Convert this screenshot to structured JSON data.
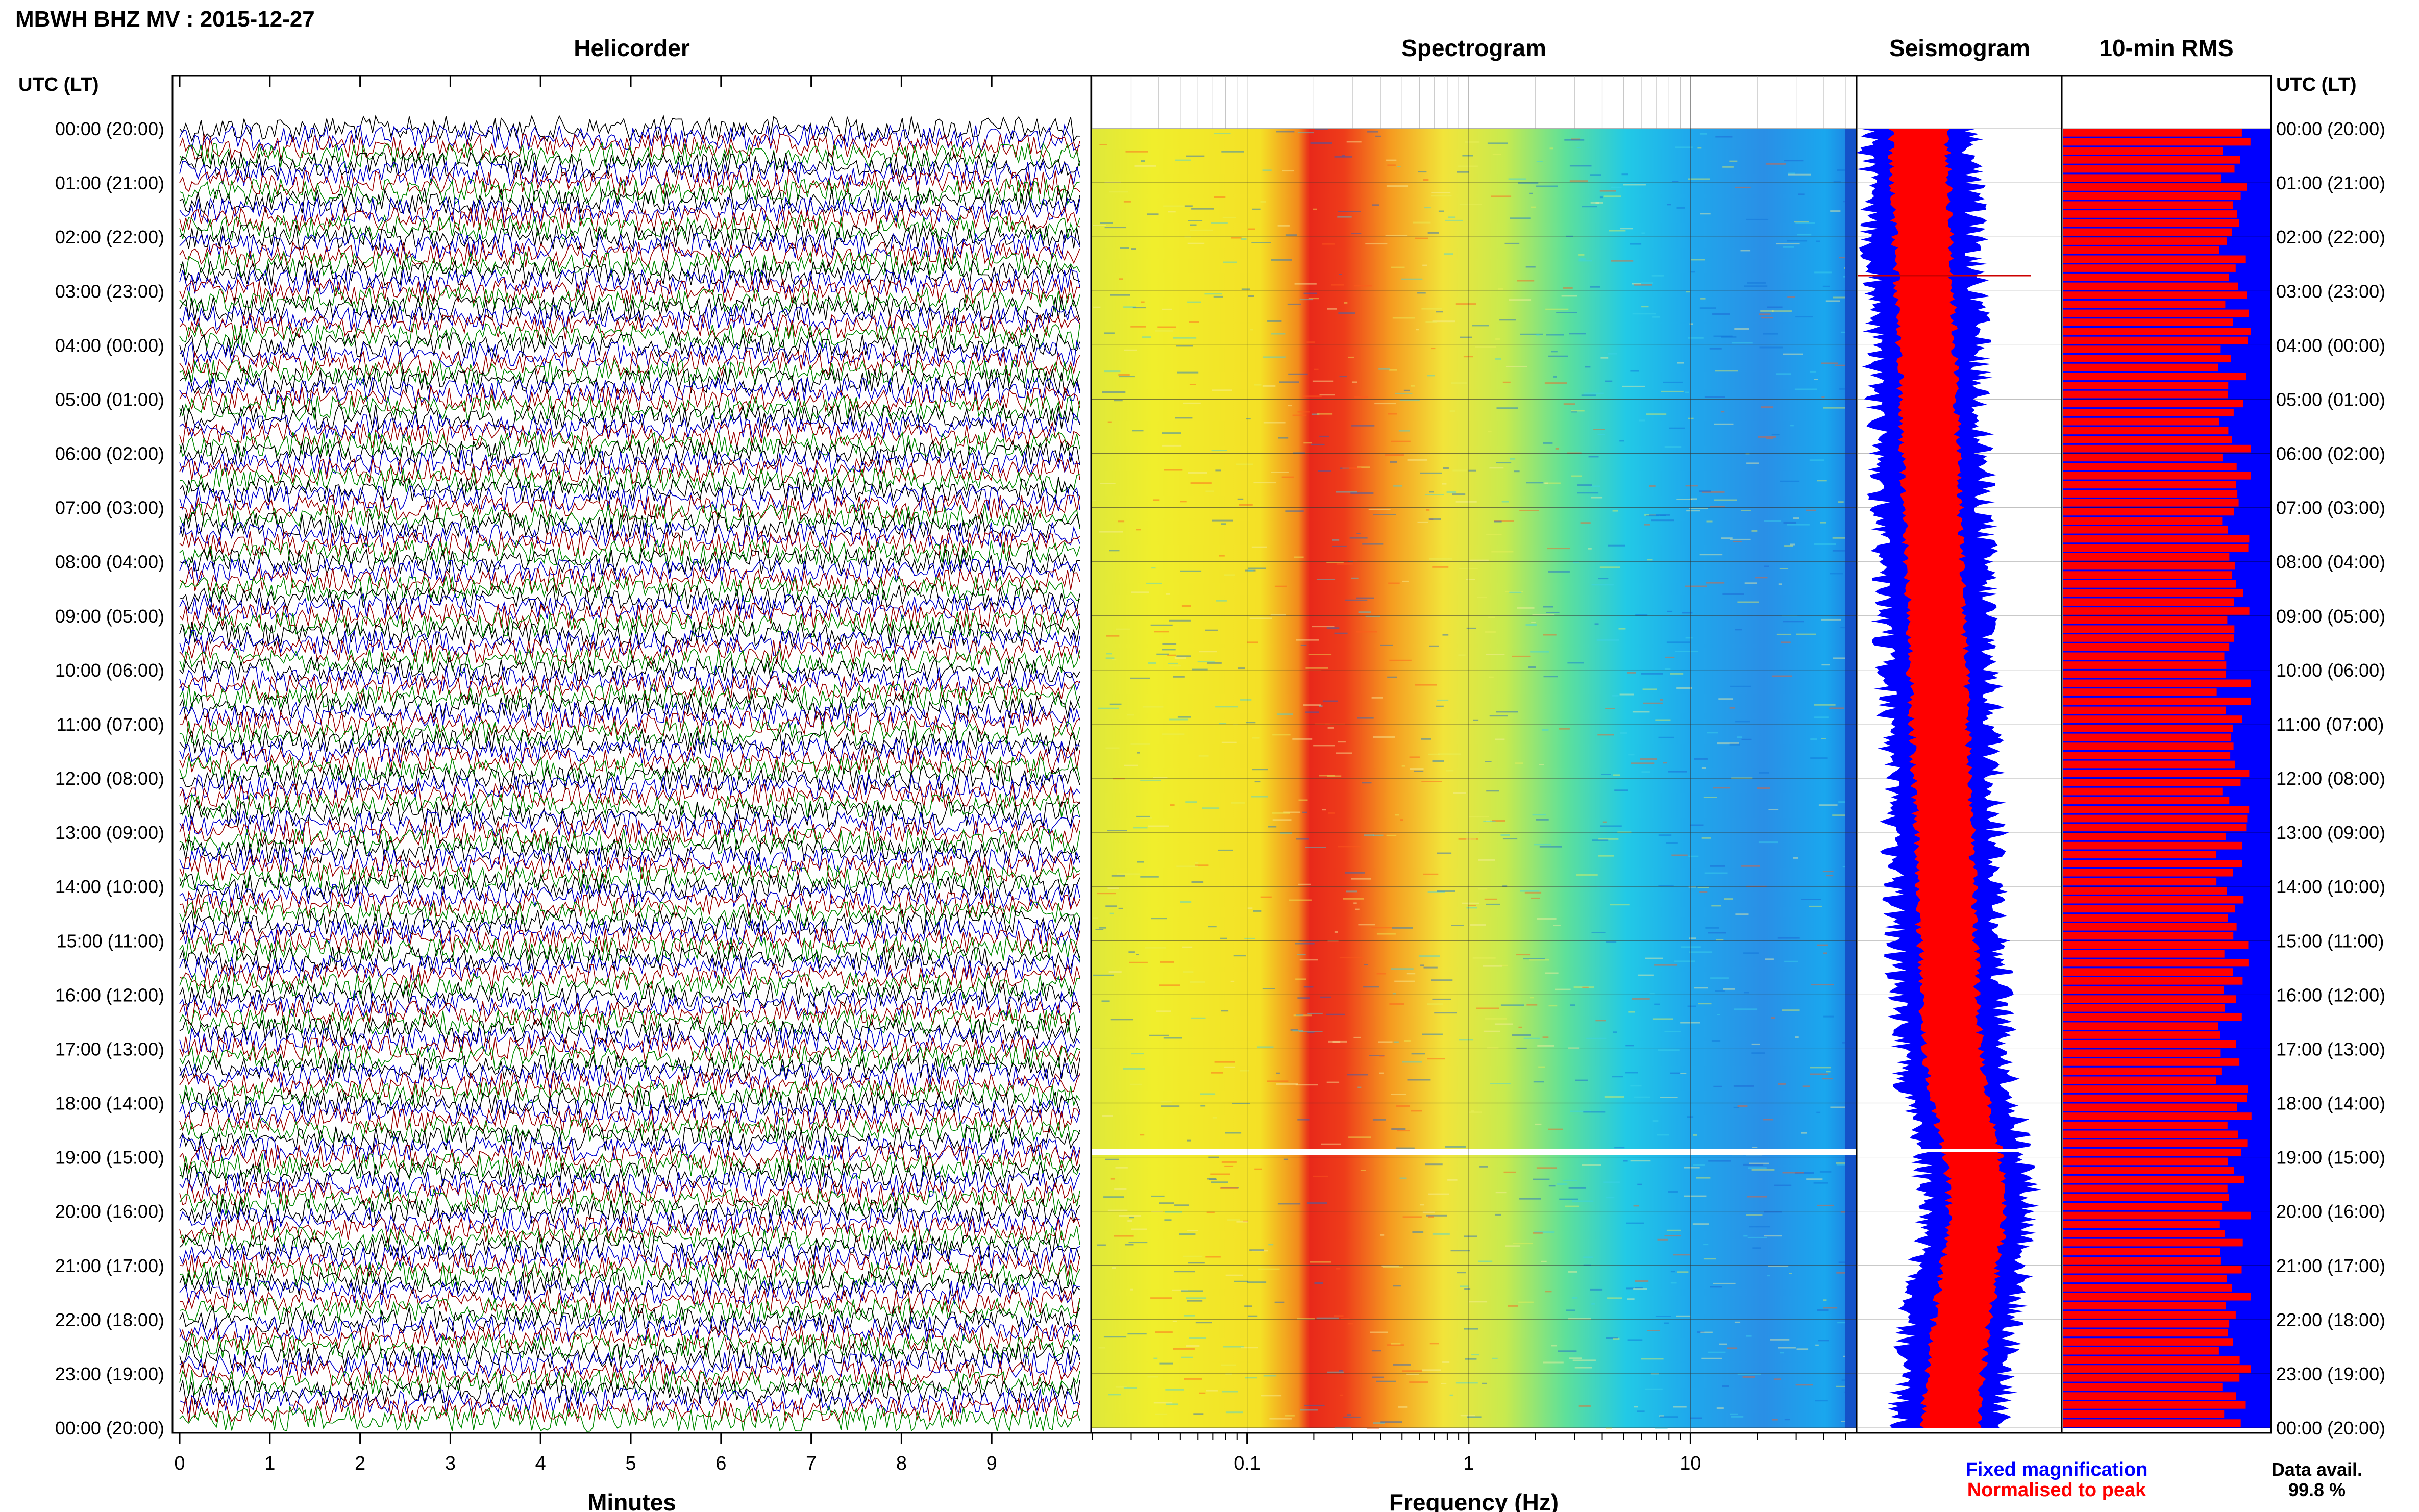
{
  "header": {
    "station_title": "MBWH BHZ MV : 2015-12-27",
    "time_axis_label_left": "UTC (LT)",
    "time_axis_label_right": "UTC (LT)"
  },
  "panels": {
    "helicorder": "Helicorder",
    "spectrogram": "Spectrogram",
    "seismogram": "Seismogram",
    "rms": "10-min RMS"
  },
  "time_labels": [
    "00:00 (20:00)",
    "01:00 (21:00)",
    "02:00 (22:00)",
    "03:00 (23:00)",
    "04:00 (00:00)",
    "05:00 (01:00)",
    "06:00 (02:00)",
    "07:00 (03:00)",
    "08:00 (04:00)",
    "09:00 (05:00)",
    "10:00 (06:00)",
    "11:00 (07:00)",
    "12:00 (08:00)",
    "13:00 (09:00)",
    "14:00 (10:00)",
    "15:00 (11:00)",
    "16:00 (12:00)",
    "17:00 (13:00)",
    "18:00 (14:00)",
    "19:00 (15:00)",
    "20:00 (16:00)",
    "21:00 (17:00)",
    "22:00 (18:00)",
    "23:00 (19:00)",
    "00:00 (20:00)"
  ],
  "legend": {
    "fixed": "Fixed magnification",
    "normalised": "Normalised to peak",
    "fixed_color": "#0000ff",
    "normalised_color": "#ff0000"
  },
  "data_availability": {
    "label": "Data avail.",
    "value": "99.8 %"
  },
  "chart_data": [
    {
      "type": "line",
      "title": "Helicorder",
      "xlabel": "Minutes",
      "x_ticks": [
        "0",
        "1",
        "2",
        "3",
        "4",
        "5",
        "6",
        "7",
        "8",
        "9"
      ],
      "xlim": [
        0,
        10
      ],
      "rows": 144,
      "row_minutes": 10,
      "trace_colors": [
        "#000000",
        "#0000cc",
        "#990000",
        "#008800"
      ]
    },
    {
      "type": "heatmap",
      "title": "Spectrogram",
      "xlabel": "Frequency (Hz)",
      "x_scale": "log",
      "x_ticks": [
        "0.1",
        "1",
        "10"
      ],
      "xlim": [
        0.02,
        50
      ],
      "ylim_hours": [
        0,
        24
      ],
      "peak_band_hz": [
        0.2,
        0.4
      ],
      "gap_time_utc": "19:00"
    },
    {
      "type": "area",
      "title": "Seismogram",
      "series": [
        {
          "name": "Fixed magnification",
          "color": "#0000ff"
        },
        {
          "name": "Normalised to peak",
          "color": "#ff0000"
        }
      ]
    },
    {
      "type": "bar",
      "title": "10-min RMS",
      "bins": 144,
      "colors": {
        "fixed": "#0000ff",
        "normalised": "#ff0000"
      }
    }
  ]
}
